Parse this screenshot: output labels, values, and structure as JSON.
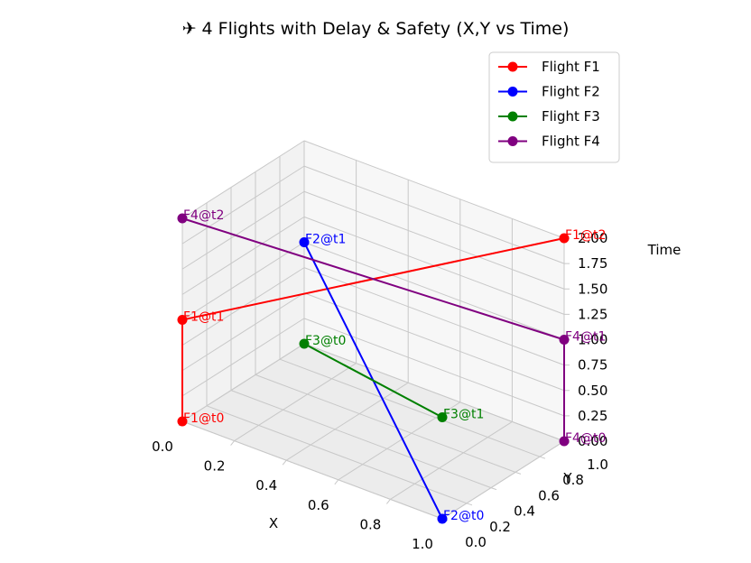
{
  "chart_data": {
    "type": "line3d",
    "title": "✈ 4 Flights with Delay & Safety (X,Y vs Time)",
    "xlabel": "X",
    "ylabel": "Y",
    "zlabel": "Time",
    "xlim": [
      0,
      1
    ],
    "ylim": [
      0,
      1
    ],
    "zlim": [
      0,
      2
    ],
    "x_ticks": [
      "0.0",
      "0.2",
      "0.4",
      "0.6",
      "0.8",
      "1.0"
    ],
    "y_ticks": [
      "0.0",
      "0.2",
      "0.4",
      "0.6",
      "0.8",
      "1.0"
    ],
    "z_ticks": [
      "0.00",
      "0.25",
      "0.50",
      "0.75",
      "1.00",
      "1.25",
      "1.50",
      "1.75",
      "2.00"
    ],
    "grid": true,
    "legend_position": "top-right",
    "series": [
      {
        "name": "Flight F1",
        "color": "#ff0000",
        "points": [
          {
            "label": "F1@t0",
            "x": 0.0,
            "y": 0.0,
            "t": 0
          },
          {
            "label": "F1@t1",
            "x": 0.0,
            "y": 0.0,
            "t": 1
          },
          {
            "label": "F1@t2",
            "x": 1.0,
            "y": 1.0,
            "t": 2
          }
        ]
      },
      {
        "name": "Flight F2",
        "color": "#0000ff",
        "points": [
          {
            "label": "F2@t0",
            "x": 1.0,
            "y": 0.0,
            "t": 0
          },
          {
            "label": "F2@t1",
            "x": 0.0,
            "y": 1.0,
            "t": 1
          }
        ]
      },
      {
        "name": "Flight F3",
        "color": "#008000",
        "points": [
          {
            "label": "F3@t0",
            "x": 0.0,
            "y": 1.0,
            "t": 0
          },
          {
            "label": "F3@t1",
            "x": 1.0,
            "y": 0.0,
            "t": 1
          }
        ]
      },
      {
        "name": "Flight F4",
        "color": "#800080",
        "points": [
          {
            "label": "F4@t0",
            "x": 1.0,
            "y": 1.0,
            "t": 0
          },
          {
            "label": "F4@t1",
            "x": 1.0,
            "y": 1.0,
            "t": 1
          },
          {
            "label": "F4@t2",
            "x": 0.0,
            "y": 0.0,
            "t": 2
          }
        ]
      }
    ]
  }
}
